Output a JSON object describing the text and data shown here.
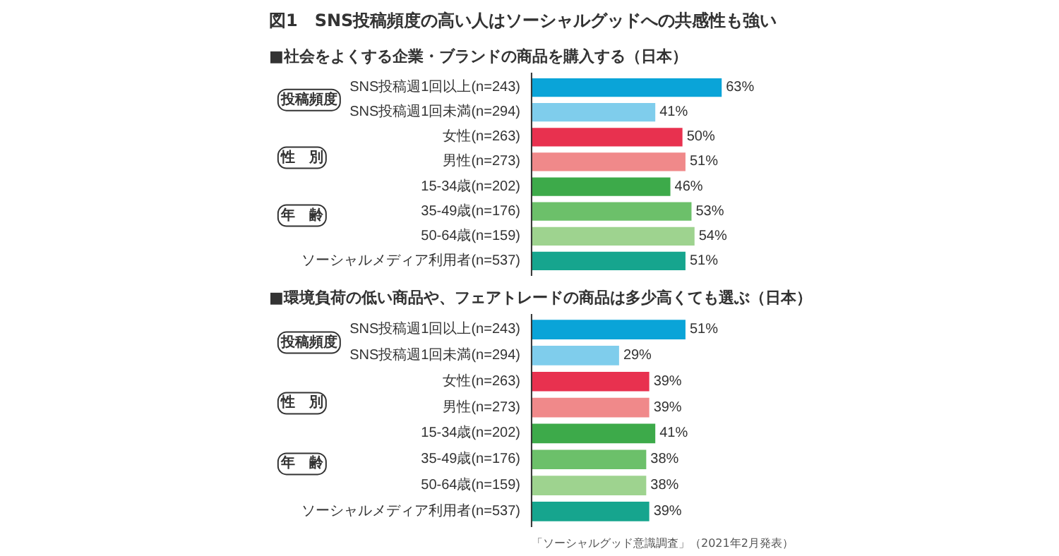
{
  "chart_data": [
    {
      "type": "bar",
      "orientation": "horizontal",
      "title": "図1　SNS投稿頻度の高い人はソーシャルグッドへの共感性も強い",
      "subtitle": "■社会をよくする企業・ブランドの商品を購入する（日本）",
      "categories": [
        "SNS投稿週1回以上(n=243)",
        "SNS投稿週1回未満(n=294)",
        "女性(n=263)",
        "男性(n=273)",
        "15-34歳(n=202)",
        "35-49歳(n=176)",
        "50-64歳(n=159)",
        "ソーシャルメディア利用者(n=537)"
      ],
      "values": [
        63,
        41,
        50,
        51,
        46,
        53,
        54,
        51
      ],
      "colors": [
        "#0aa4d8",
        "#7fcdec",
        "#e8314f",
        "#f0898a",
        "#3daa4a",
        "#6cc06a",
        "#9ed38f",
        "#16a58e"
      ],
      "value_labels": [
        "63%",
        "41%",
        "50%",
        "51%",
        "46%",
        "53%",
        "54%",
        "51%"
      ],
      "annotations": [
        "投稿頻度",
        "性　別",
        "年　齢"
      ]
    },
    {
      "type": "bar",
      "orientation": "horizontal",
      "title": "■環境負荷の低い商品や、フェアトレードの商品は多少高くても選ぶ（日本）",
      "categories": [
        "SNS投稿週1回以上(n=243)",
        "SNS投稿週1回未満(n=294)",
        "女性(n=263)",
        "男性(n=273)",
        "15-34歳(n=202)",
        "35-49歳(n=176)",
        "50-64歳(n=159)",
        "ソーシャルメディア利用者(n=537)"
      ],
      "values": [
        51,
        29,
        39,
        39,
        41,
        38,
        38,
        39
      ],
      "colors": [
        "#0aa4d8",
        "#7fcdec",
        "#e8314f",
        "#f0898a",
        "#3daa4a",
        "#6cc06a",
        "#9ed38f",
        "#16a58e"
      ],
      "value_labels": [
        "51%",
        "29%",
        "39%",
        "39%",
        "41%",
        "38%",
        "38%",
        "39%"
      ],
      "annotations": [
        "投稿頻度",
        "性　別",
        "年　齢",
        "「ソーシャルグッド意識調査」（2021年2月発表）"
      ]
    }
  ]
}
